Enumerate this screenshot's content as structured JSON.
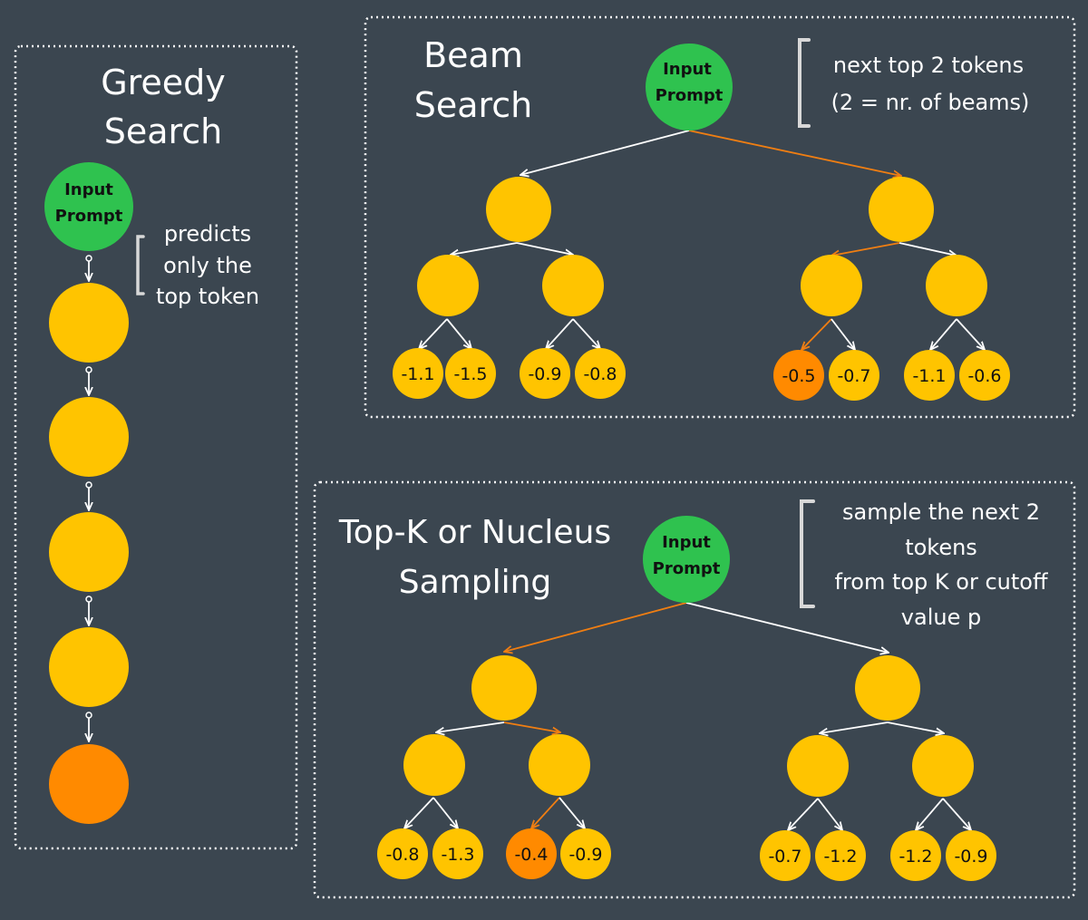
{
  "colors": {
    "background": "#3b4650",
    "prompt_node": "#2fc24f",
    "token_node": "#ffc400",
    "selected_node": "#ff8a00",
    "edge_default": "#ffffff",
    "edge_selected": "#f07e12",
    "bracket": "#d8d8d8"
  },
  "greedy": {
    "title_line1": "Greedy",
    "title_line2": "Search",
    "prompt_line1": "Input",
    "prompt_line2": "Prompt",
    "note_lines": [
      "predicts",
      "only the",
      "top token"
    ]
  },
  "beam": {
    "title_line1": "Beam",
    "title_line2": "Search",
    "prompt_line1": "Input",
    "prompt_line2": "Prompt",
    "note_lines": [
      "next top 2 tokens",
      "(2 = nr. of beams)"
    ],
    "leaves": [
      "-1.1",
      "-1.5",
      "-0.9",
      "-0.8",
      "-0.5",
      "-0.7",
      "-1.1",
      "-0.6"
    ],
    "selected_leaf": "-0.5"
  },
  "sampling": {
    "title_line1": "Top-K or Nucleus",
    "title_line2": "Sampling",
    "prompt_line1": "Input",
    "prompt_line2": "Prompt",
    "note_lines": [
      "sample the next 2",
      "tokens",
      "from top K or cutoff",
      "value p"
    ],
    "leaves": [
      "-0.8",
      "-1.3",
      "-0.4",
      "-0.9",
      "-0.7",
      "-1.2",
      "-1.2",
      "-0.9"
    ],
    "selected_leaf": "-0.4"
  }
}
